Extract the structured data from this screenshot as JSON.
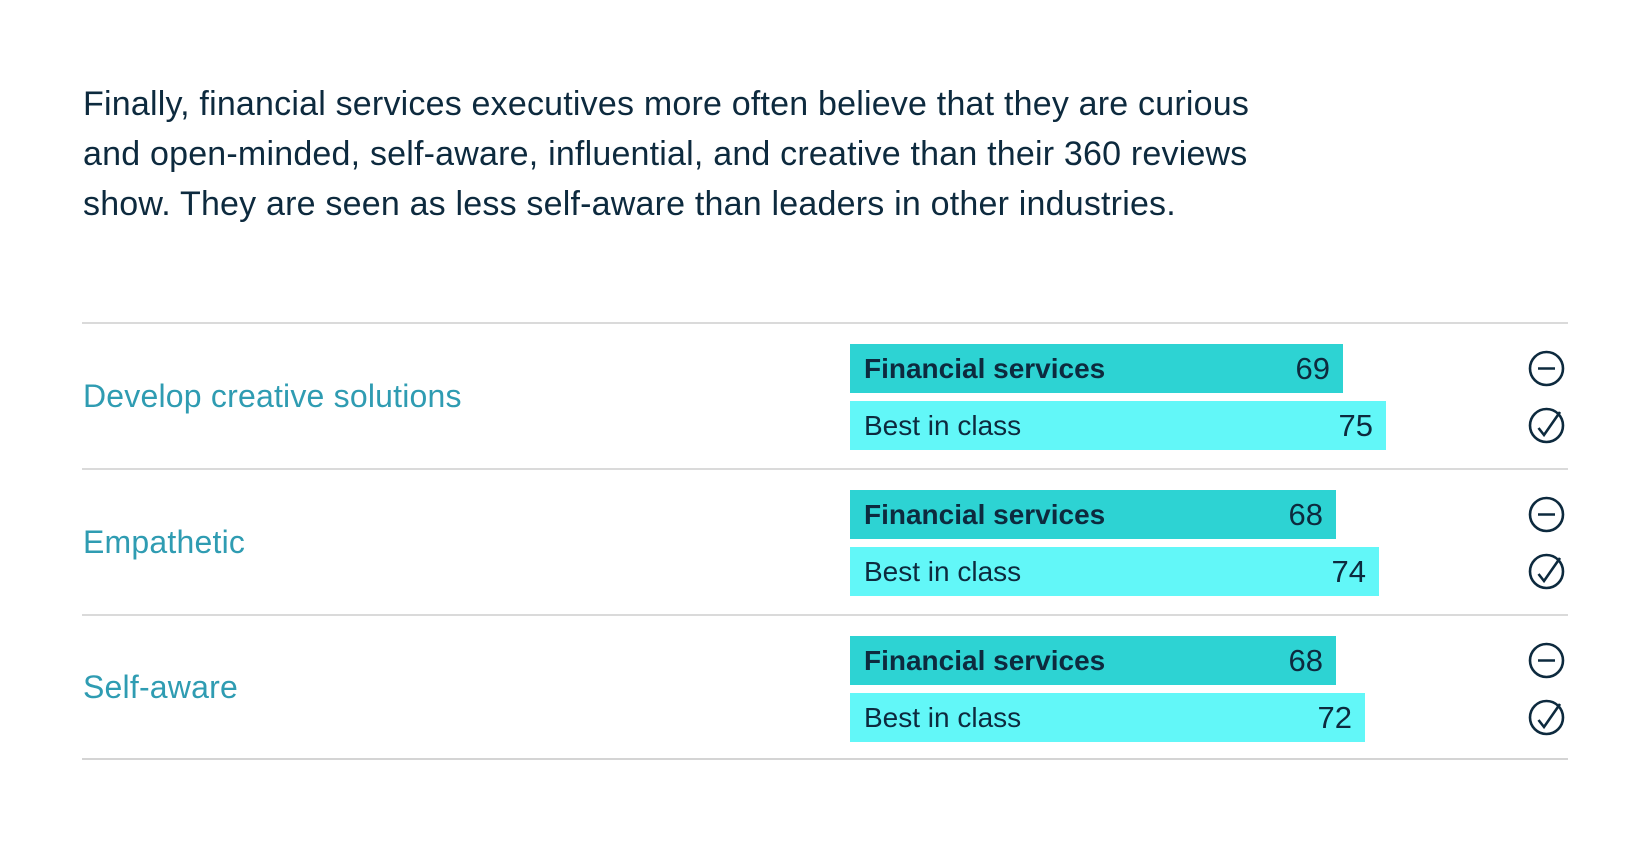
{
  "intro": {
    "text": "Finally, financial services executives more often believe that they are curious\nand open-minded, self-aware, influential, and creative than their 360 reviews\nshow. They are seen as less self-aware than leaders in other industries."
  },
  "chart_data": {
    "type": "bar",
    "orientation": "horizontal",
    "title": "",
    "categories": [
      "Develop creative solutions",
      "Empathetic",
      "Self-aware"
    ],
    "series": [
      {
        "name": "Financial services",
        "values": [
          69,
          68,
          68
        ],
        "color": "#2dd3d3"
      },
      {
        "name": "Best in class",
        "values": [
          75,
          74,
          72
        ],
        "color": "#62f7f8"
      }
    ],
    "legend": "labels shown inside bars",
    "grid": "off",
    "row_end_icons": [
      "minus-circle-icon",
      "check-circle-icon"
    ]
  },
  "colors": {
    "financial_services_bar": "#2dd3d3",
    "best_in_class_bar": "#62f7f8",
    "dark_text": "#0d2a3e",
    "category_label": "#2f9cb2",
    "divider": "#dadada",
    "background": "#ffffff"
  }
}
